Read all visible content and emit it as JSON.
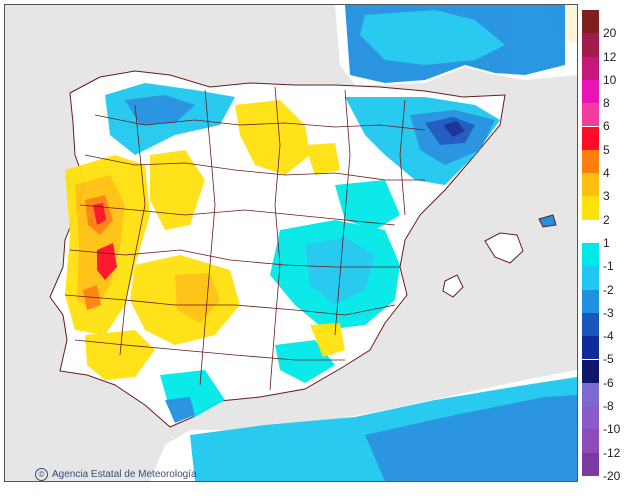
{
  "attribution": {
    "logo_icon": "aemet-logo-icon",
    "text": "Agencia Estatal de Meteorología"
  },
  "legend": {
    "entries": [
      {
        "label": "20",
        "color": "#7f1f1f"
      },
      {
        "label": "12",
        "color": "#a01c4a"
      },
      {
        "label": "10",
        "color": "#c8177a"
      },
      {
        "label": "8",
        "color": "#e815b4"
      },
      {
        "label": "6",
        "color": "#f23ca0"
      },
      {
        "label": "5",
        "color": "#ff0d26"
      },
      {
        "label": "4",
        "color": "#ff7f0d"
      },
      {
        "label": "3",
        "color": "#ffc00d"
      },
      {
        "label": "2",
        "color": "#ffe10d"
      },
      {
        "label": "1",
        "color": "#ffffff"
      },
      {
        "label": "-1",
        "color": "#00e8e8"
      },
      {
        "label": "-2",
        "color": "#1ec8f0"
      },
      {
        "label": "-3",
        "color": "#2090e0"
      },
      {
        "label": "-4",
        "color": "#1a56c0"
      },
      {
        "label": "-5",
        "color": "#102c98"
      },
      {
        "label": "-6",
        "color": "#101668"
      },
      {
        "label": "-8",
        "color": "#7c6ad4"
      },
      {
        "label": "-10",
        "color": "#8a5cc8"
      },
      {
        "label": "-12",
        "color": "#8e4cb8"
      },
      {
        "label": "-20",
        "color": "#7a3aa2"
      }
    ]
  },
  "colors": {
    "sea": "#e6e6e6",
    "land": "#ffffff",
    "boundary": "#6a1a1a"
  }
}
